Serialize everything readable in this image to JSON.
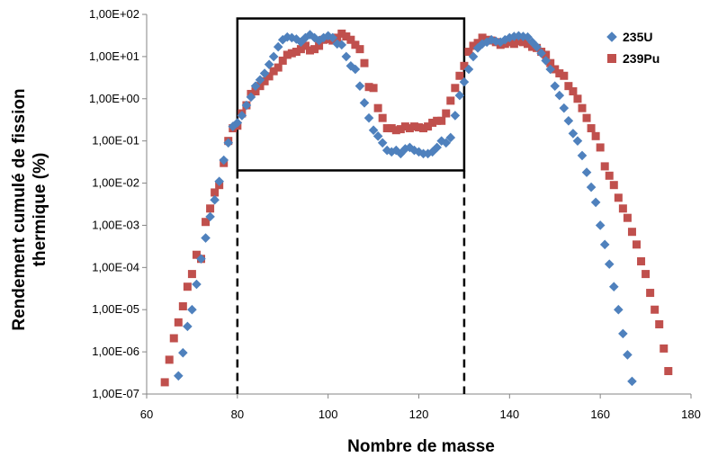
{
  "chart_data": {
    "type": "scatter",
    "xlabel": "Nombre de masse",
    "ylabel_line1": "Rendement cumulé de fission",
    "ylabel_line2": "thermique (%)",
    "x_range": [
      60,
      180
    ],
    "x_ticks": [
      60,
      80,
      100,
      120,
      140,
      160,
      180
    ],
    "y_scale": "log",
    "y_range": [
      1e-07,
      100
    ],
    "y_ticks": [
      "1,00E+02",
      "1,00E+01",
      "1,00E+00",
      "1,00E-01",
      "1,00E-02",
      "1,00E-03",
      "1,00E-04",
      "1,00E-05",
      "1,00E-06",
      "1,00E-07"
    ],
    "grid": false,
    "legend_position": "top-right",
    "highlight_box": {
      "x_range": [
        80,
        130
      ],
      "y_range": [
        0.02,
        80
      ],
      "dashed_extension_to_x_axis": true
    },
    "series": [
      {
        "name": "235U",
        "marker": "diamond",
        "color": "#4F81BD",
        "points": [
          [
            67,
            2.7e-07
          ],
          [
            68,
            9.5e-07
          ],
          [
            69,
            4e-06
          ],
          [
            70,
            1e-05
          ],
          [
            71,
            4e-05
          ],
          [
            72,
            0.00016
          ],
          [
            73,
            0.0005
          ],
          [
            74,
            0.0016
          ],
          [
            75,
            0.004
          ],
          [
            76,
            0.011
          ],
          [
            77,
            0.035
          ],
          [
            78,
            0.09
          ],
          [
            79,
            0.22
          ],
          [
            80,
            0.27
          ],
          [
            81,
            0.4
          ],
          [
            82,
            0.7
          ],
          [
            83,
            1.1
          ],
          [
            84,
            2.0
          ],
          [
            85,
            2.8
          ],
          [
            86,
            4.0
          ],
          [
            87,
            6.5
          ],
          [
            88,
            10
          ],
          [
            89,
            17
          ],
          [
            90,
            25
          ],
          [
            91,
            29
          ],
          [
            92,
            28
          ],
          [
            93,
            26
          ],
          [
            94,
            22
          ],
          [
            95,
            28
          ],
          [
            96,
            33
          ],
          [
            97,
            28
          ],
          [
            98,
            24
          ],
          [
            99,
            28
          ],
          [
            100,
            31
          ],
          [
            101,
            28
          ],
          [
            102,
            20
          ],
          [
            103,
            19
          ],
          [
            104,
            10
          ],
          [
            105,
            6
          ],
          [
            106,
            5
          ],
          [
            107,
            2.0
          ],
          [
            108,
            0.8
          ],
          [
            109,
            0.35
          ],
          [
            110,
            0.18
          ],
          [
            111,
            0.13
          ],
          [
            112,
            0.09
          ],
          [
            113,
            0.06
          ],
          [
            114,
            0.055
          ],
          [
            115,
            0.06
          ],
          [
            116,
            0.05
          ],
          [
            117,
            0.065
          ],
          [
            118,
            0.07
          ],
          [
            119,
            0.06
          ],
          [
            120,
            0.055
          ],
          [
            121,
            0.05
          ],
          [
            122,
            0.05
          ],
          [
            123,
            0.055
          ],
          [
            124,
            0.07
          ],
          [
            125,
            0.1
          ],
          [
            126,
            0.09
          ],
          [
            127,
            0.12
          ],
          [
            128,
            0.4
          ],
          [
            129,
            1.2
          ],
          [
            130,
            2.5
          ],
          [
            131,
            5
          ],
          [
            132,
            10
          ],
          [
            133,
            16
          ],
          [
            134,
            20
          ],
          [
            135,
            22
          ],
          [
            136,
            25
          ],
          [
            137,
            23
          ],
          [
            138,
            22
          ],
          [
            139,
            25
          ],
          [
            140,
            28
          ],
          [
            141,
            30
          ],
          [
            142,
            31
          ],
          [
            143,
            30
          ],
          [
            144,
            29
          ],
          [
            145,
            22
          ],
          [
            146,
            17
          ],
          [
            147,
            12
          ],
          [
            148,
            8
          ],
          [
            149,
            5
          ],
          [
            150,
            2.0
          ],
          [
            151,
            1.2
          ],
          [
            152,
            0.6
          ],
          [
            153,
            0.3
          ],
          [
            154,
            0.15
          ],
          [
            155,
            0.1
          ],
          [
            156,
            0.045
          ],
          [
            157,
            0.018
          ],
          [
            158,
            0.008
          ],
          [
            159,
            0.0035
          ],
          [
            160,
            0.001
          ],
          [
            161,
            0.00035
          ],
          [
            162,
            0.00012
          ],
          [
            163,
            3.5e-05
          ],
          [
            164,
            1e-05
          ],
          [
            165,
            2.7e-06
          ],
          [
            166,
            8.5e-07
          ],
          [
            167,
            2e-07
          ]
        ]
      },
      {
        "name": "239Pu",
        "marker": "square",
        "color": "#C0504D",
        "points": [
          [
            64,
            1.9e-07
          ],
          [
            65,
            6.5e-07
          ],
          [
            66,
            2.1e-06
          ],
          [
            67,
            5e-06
          ],
          [
            68,
            1.2e-05
          ],
          [
            69,
            3.5e-05
          ],
          [
            70,
            7e-05
          ],
          [
            71,
            0.0002
          ],
          [
            72,
            0.00016
          ],
          [
            73,
            0.0012
          ],
          [
            74,
            0.0025
          ],
          [
            75,
            0.006
          ],
          [
            76,
            0.009
          ],
          [
            77,
            0.03
          ],
          [
            78,
            0.1
          ],
          [
            79,
            0.2
          ],
          [
            80,
            0.23
          ],
          [
            81,
            0.45
          ],
          [
            82,
            0.7
          ],
          [
            83,
            1.3
          ],
          [
            84,
            1.5
          ],
          [
            85,
            2.0
          ],
          [
            86,
            2.6
          ],
          [
            87,
            3.4
          ],
          [
            88,
            4.5
          ],
          [
            89,
            5.5
          ],
          [
            90,
            8
          ],
          [
            91,
            11
          ],
          [
            92,
            12
          ],
          [
            93,
            13
          ],
          [
            94,
            15
          ],
          [
            95,
            18
          ],
          [
            96,
            14
          ],
          [
            97,
            15
          ],
          [
            98,
            18
          ],
          [
            99,
            25
          ],
          [
            100,
            26
          ],
          [
            101,
            24
          ],
          [
            102,
            28
          ],
          [
            103,
            35
          ],
          [
            104,
            30
          ],
          [
            105,
            25
          ],
          [
            106,
            19
          ],
          [
            107,
            15
          ],
          [
            108,
            7
          ],
          [
            109,
            1.9
          ],
          [
            110,
            1.8
          ],
          [
            111,
            0.6
          ],
          [
            112,
            0.35
          ],
          [
            113,
            0.2
          ],
          [
            114,
            0.2
          ],
          [
            115,
            0.18
          ],
          [
            116,
            0.19
          ],
          [
            117,
            0.22
          ],
          [
            118,
            0.2
          ],
          [
            119,
            0.22
          ],
          [
            120,
            0.21
          ],
          [
            121,
            0.2
          ],
          [
            122,
            0.22
          ],
          [
            123,
            0.27
          ],
          [
            124,
            0.3
          ],
          [
            125,
            0.3
          ],
          [
            126,
            0.45
          ],
          [
            127,
            0.9
          ],
          [
            128,
            1.8
          ],
          [
            129,
            3.5
          ],
          [
            130,
            6
          ],
          [
            131,
            13
          ],
          [
            132,
            18
          ],
          [
            133,
            21
          ],
          [
            134,
            28
          ],
          [
            135,
            25
          ],
          [
            136,
            24
          ],
          [
            137,
            22
          ],
          [
            138,
            19
          ],
          [
            139,
            20
          ],
          [
            140,
            22
          ],
          [
            141,
            20
          ],
          [
            142,
            23
          ],
          [
            143,
            22
          ],
          [
            144,
            20
          ],
          [
            145,
            17
          ],
          [
            146,
            16
          ],
          [
            147,
            13
          ],
          [
            148,
            11
          ],
          [
            149,
            7
          ],
          [
            150,
            5
          ],
          [
            151,
            4
          ],
          [
            152,
            3.5
          ],
          [
            153,
            2.0
          ],
          [
            154,
            1.5
          ],
          [
            155,
            1.0
          ],
          [
            156,
            0.6
          ],
          [
            157,
            0.35
          ],
          [
            158,
            0.2
          ],
          [
            159,
            0.13
          ],
          [
            160,
            0.07
          ],
          [
            161,
            0.025
          ],
          [
            162,
            0.015
          ],
          [
            163,
            0.009
          ],
          [
            164,
            0.0045
          ],
          [
            165,
            0.0025
          ],
          [
            166,
            0.0015
          ],
          [
            167,
            0.0007
          ],
          [
            168,
            0.00035
          ],
          [
            169,
            0.00014
          ],
          [
            170,
            7e-05
          ],
          [
            171,
            2.5e-05
          ],
          [
            172,
            1e-05
          ],
          [
            173,
            4.5e-06
          ],
          [
            174,
            1.2e-06
          ],
          [
            175,
            3.5e-07
          ]
        ]
      }
    ]
  }
}
